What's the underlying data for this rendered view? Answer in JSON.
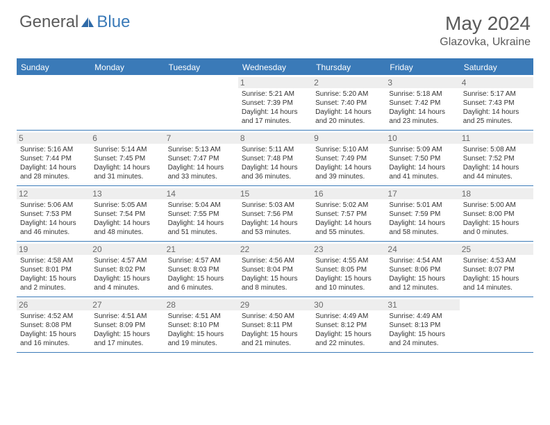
{
  "brand": {
    "general": "General",
    "blue": "Blue"
  },
  "title": "May 2024",
  "location": "Glazovka, Ukraine",
  "colors": {
    "accent": "#3a7ab8",
    "text": "#5a5a5a",
    "cellHeaderBg": "#eeeeee"
  },
  "dayHeaders": [
    "Sunday",
    "Monday",
    "Tuesday",
    "Wednesday",
    "Thursday",
    "Friday",
    "Saturday"
  ],
  "weeks": [
    [
      {
        "day": "",
        "sunrise": "",
        "sunset": "",
        "daylight1": "",
        "daylight2": ""
      },
      {
        "day": "",
        "sunrise": "",
        "sunset": "",
        "daylight1": "",
        "daylight2": ""
      },
      {
        "day": "",
        "sunrise": "",
        "sunset": "",
        "daylight1": "",
        "daylight2": ""
      },
      {
        "day": "1",
        "sunrise": "Sunrise: 5:21 AM",
        "sunset": "Sunset: 7:39 PM",
        "daylight1": "Daylight: 14 hours",
        "daylight2": "and 17 minutes."
      },
      {
        "day": "2",
        "sunrise": "Sunrise: 5:20 AM",
        "sunset": "Sunset: 7:40 PM",
        "daylight1": "Daylight: 14 hours",
        "daylight2": "and 20 minutes."
      },
      {
        "day": "3",
        "sunrise": "Sunrise: 5:18 AM",
        "sunset": "Sunset: 7:42 PM",
        "daylight1": "Daylight: 14 hours",
        "daylight2": "and 23 minutes."
      },
      {
        "day": "4",
        "sunrise": "Sunrise: 5:17 AM",
        "sunset": "Sunset: 7:43 PM",
        "daylight1": "Daylight: 14 hours",
        "daylight2": "and 25 minutes."
      }
    ],
    [
      {
        "day": "5",
        "sunrise": "Sunrise: 5:16 AM",
        "sunset": "Sunset: 7:44 PM",
        "daylight1": "Daylight: 14 hours",
        "daylight2": "and 28 minutes."
      },
      {
        "day": "6",
        "sunrise": "Sunrise: 5:14 AM",
        "sunset": "Sunset: 7:45 PM",
        "daylight1": "Daylight: 14 hours",
        "daylight2": "and 31 minutes."
      },
      {
        "day": "7",
        "sunrise": "Sunrise: 5:13 AM",
        "sunset": "Sunset: 7:47 PM",
        "daylight1": "Daylight: 14 hours",
        "daylight2": "and 33 minutes."
      },
      {
        "day": "8",
        "sunrise": "Sunrise: 5:11 AM",
        "sunset": "Sunset: 7:48 PM",
        "daylight1": "Daylight: 14 hours",
        "daylight2": "and 36 minutes."
      },
      {
        "day": "9",
        "sunrise": "Sunrise: 5:10 AM",
        "sunset": "Sunset: 7:49 PM",
        "daylight1": "Daylight: 14 hours",
        "daylight2": "and 39 minutes."
      },
      {
        "day": "10",
        "sunrise": "Sunrise: 5:09 AM",
        "sunset": "Sunset: 7:50 PM",
        "daylight1": "Daylight: 14 hours",
        "daylight2": "and 41 minutes."
      },
      {
        "day": "11",
        "sunrise": "Sunrise: 5:08 AM",
        "sunset": "Sunset: 7:52 PM",
        "daylight1": "Daylight: 14 hours",
        "daylight2": "and 44 minutes."
      }
    ],
    [
      {
        "day": "12",
        "sunrise": "Sunrise: 5:06 AM",
        "sunset": "Sunset: 7:53 PM",
        "daylight1": "Daylight: 14 hours",
        "daylight2": "and 46 minutes."
      },
      {
        "day": "13",
        "sunrise": "Sunrise: 5:05 AM",
        "sunset": "Sunset: 7:54 PM",
        "daylight1": "Daylight: 14 hours",
        "daylight2": "and 48 minutes."
      },
      {
        "day": "14",
        "sunrise": "Sunrise: 5:04 AM",
        "sunset": "Sunset: 7:55 PM",
        "daylight1": "Daylight: 14 hours",
        "daylight2": "and 51 minutes."
      },
      {
        "day": "15",
        "sunrise": "Sunrise: 5:03 AM",
        "sunset": "Sunset: 7:56 PM",
        "daylight1": "Daylight: 14 hours",
        "daylight2": "and 53 minutes."
      },
      {
        "day": "16",
        "sunrise": "Sunrise: 5:02 AM",
        "sunset": "Sunset: 7:57 PM",
        "daylight1": "Daylight: 14 hours",
        "daylight2": "and 55 minutes."
      },
      {
        "day": "17",
        "sunrise": "Sunrise: 5:01 AM",
        "sunset": "Sunset: 7:59 PM",
        "daylight1": "Daylight: 14 hours",
        "daylight2": "and 58 minutes."
      },
      {
        "day": "18",
        "sunrise": "Sunrise: 5:00 AM",
        "sunset": "Sunset: 8:00 PM",
        "daylight1": "Daylight: 15 hours",
        "daylight2": "and 0 minutes."
      }
    ],
    [
      {
        "day": "19",
        "sunrise": "Sunrise: 4:58 AM",
        "sunset": "Sunset: 8:01 PM",
        "daylight1": "Daylight: 15 hours",
        "daylight2": "and 2 minutes."
      },
      {
        "day": "20",
        "sunrise": "Sunrise: 4:57 AM",
        "sunset": "Sunset: 8:02 PM",
        "daylight1": "Daylight: 15 hours",
        "daylight2": "and 4 minutes."
      },
      {
        "day": "21",
        "sunrise": "Sunrise: 4:57 AM",
        "sunset": "Sunset: 8:03 PM",
        "daylight1": "Daylight: 15 hours",
        "daylight2": "and 6 minutes."
      },
      {
        "day": "22",
        "sunrise": "Sunrise: 4:56 AM",
        "sunset": "Sunset: 8:04 PM",
        "daylight1": "Daylight: 15 hours",
        "daylight2": "and 8 minutes."
      },
      {
        "day": "23",
        "sunrise": "Sunrise: 4:55 AM",
        "sunset": "Sunset: 8:05 PM",
        "daylight1": "Daylight: 15 hours",
        "daylight2": "and 10 minutes."
      },
      {
        "day": "24",
        "sunrise": "Sunrise: 4:54 AM",
        "sunset": "Sunset: 8:06 PM",
        "daylight1": "Daylight: 15 hours",
        "daylight2": "and 12 minutes."
      },
      {
        "day": "25",
        "sunrise": "Sunrise: 4:53 AM",
        "sunset": "Sunset: 8:07 PM",
        "daylight1": "Daylight: 15 hours",
        "daylight2": "and 14 minutes."
      }
    ],
    [
      {
        "day": "26",
        "sunrise": "Sunrise: 4:52 AM",
        "sunset": "Sunset: 8:08 PM",
        "daylight1": "Daylight: 15 hours",
        "daylight2": "and 16 minutes."
      },
      {
        "day": "27",
        "sunrise": "Sunrise: 4:51 AM",
        "sunset": "Sunset: 8:09 PM",
        "daylight1": "Daylight: 15 hours",
        "daylight2": "and 17 minutes."
      },
      {
        "day": "28",
        "sunrise": "Sunrise: 4:51 AM",
        "sunset": "Sunset: 8:10 PM",
        "daylight1": "Daylight: 15 hours",
        "daylight2": "and 19 minutes."
      },
      {
        "day": "29",
        "sunrise": "Sunrise: 4:50 AM",
        "sunset": "Sunset: 8:11 PM",
        "daylight1": "Daylight: 15 hours",
        "daylight2": "and 21 minutes."
      },
      {
        "day": "30",
        "sunrise": "Sunrise: 4:49 AM",
        "sunset": "Sunset: 8:12 PM",
        "daylight1": "Daylight: 15 hours",
        "daylight2": "and 22 minutes."
      },
      {
        "day": "31",
        "sunrise": "Sunrise: 4:49 AM",
        "sunset": "Sunset: 8:13 PM",
        "daylight1": "Daylight: 15 hours",
        "daylight2": "and 24 minutes."
      },
      {
        "day": "",
        "sunrise": "",
        "sunset": "",
        "daylight1": "",
        "daylight2": ""
      }
    ]
  ]
}
